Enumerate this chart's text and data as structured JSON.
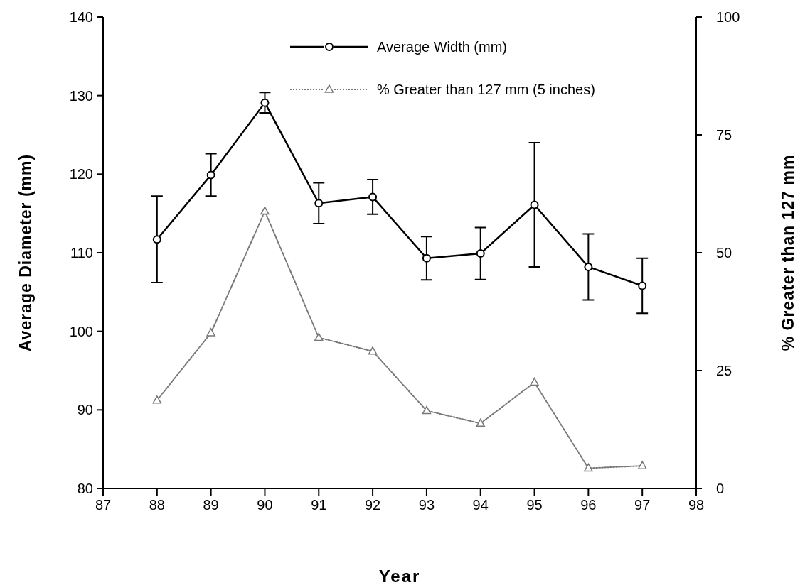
{
  "chart_data": {
    "type": "line",
    "xlabel": "Year",
    "ylabel": "Average Diameter (mm)",
    "y2label": "% Greater than 127 mm",
    "x": [
      88,
      89,
      90,
      91,
      92,
      93,
      94,
      95,
      96,
      97
    ],
    "xlim": [
      87,
      98
    ],
    "xticks": [
      87,
      88,
      89,
      90,
      91,
      92,
      93,
      94,
      95,
      96,
      97,
      98
    ],
    "ylim": [
      80,
      140
    ],
    "yticks": [
      80,
      90,
      100,
      110,
      120,
      130,
      140
    ],
    "y2lim": [
      0,
      100
    ],
    "y2ticks": [
      0,
      25,
      50,
      75,
      100
    ],
    "grid": false,
    "legend": "top",
    "series": [
      {
        "name": "Average Width (mm)",
        "color": "#000000",
        "marker": "circle",
        "line_style": "solid",
        "values": [
          111.7,
          119.9,
          129.1,
          116.3,
          117.1,
          109.3,
          109.9,
          116.1,
          108.2,
          105.8
        ],
        "errors": [
          5.5,
          2.7,
          1.3,
          2.6,
          2.2,
          2.75,
          3.3,
          7.9,
          4.2,
          3.5
        ]
      },
      {
        "name": "% Greater than 127 mm (5 inches)",
        "color": "#777777",
        "marker": "triangle",
        "line_style": "dotted",
        "axis": "y2",
        "values": [
          18.7,
          33.0,
          58.8,
          32.0,
          29.1,
          16.5,
          13.8,
          22.5,
          4.3,
          4.8
        ]
      }
    ]
  }
}
